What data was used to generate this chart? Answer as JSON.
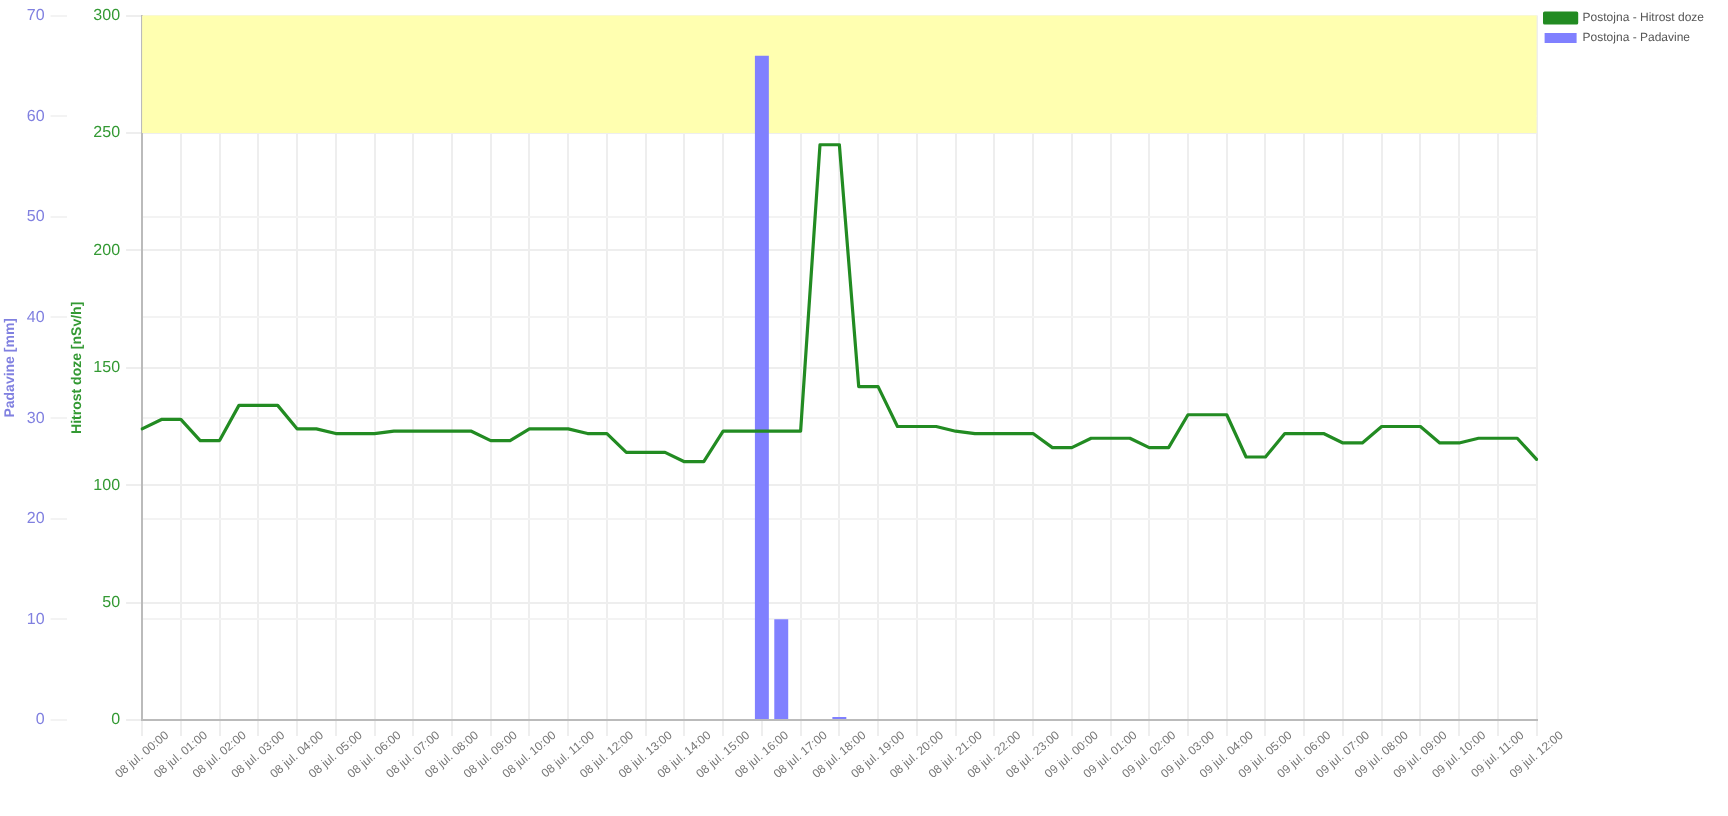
{
  "chart_data": {
    "type": "line",
    "ylabel": "Hitrost doze [nSv/h]",
    "y2label": "Padavine [mm]",
    "categories": [
      "08 jul. 00:00",
      null,
      "08 jul. 01:00",
      null,
      "08 jul. 02:00",
      null,
      "08 jul. 03:00",
      null,
      "08 jul. 04:00",
      null,
      "08 jul. 05:00",
      null,
      "08 jul. 06:00",
      null,
      "08 jul. 07:00",
      null,
      "08 jul. 08:00",
      null,
      "08 jul. 09:00",
      null,
      "08 jul. 10:00",
      null,
      "08 jul. 11:00",
      null,
      "08 jul. 12:00",
      null,
      "08 jul. 13:00",
      null,
      "08 jul. 14:00",
      null,
      "08 jul. 15:00",
      null,
      "08 jul. 16:00",
      null,
      "08 jul. 17:00",
      null,
      "08 jul. 18:00",
      null,
      "08 jul. 19:00",
      null,
      "08 jul. 20:00",
      null,
      "08 jul. 21:00",
      null,
      "08 jul. 22:00",
      null,
      "08 jul. 23:00",
      null,
      "09 jul. 00:00",
      null,
      "09 jul. 01:00",
      null,
      "09 jul. 02:00",
      null,
      "09 jul. 03:00",
      null,
      "09 jul. 04:00",
      null,
      "09 jul. 05:00",
      null,
      "09 jul. 06:00",
      null,
      "09 jul. 07:00",
      null,
      "09 jul. 08:00",
      null,
      "09 jul. 09:00",
      null,
      "09 jul. 10:00",
      null,
      "09 jul. 11:00",
      null,
      "09 jul. 12:00"
    ],
    "ylim": [
      0,
      300
    ],
    "yticks": [
      0,
      50,
      100,
      150,
      200,
      250,
      300
    ],
    "y2lim": [
      0,
      70
    ],
    "y2ticks": [
      0,
      10,
      20,
      30,
      40,
      50,
      60,
      70
    ],
    "grid": true,
    "legend": "top right",
    "marker": "none",
    "line_style": "solid",
    "bands": [
      {
        "axis": "y",
        "from": 250,
        "to": 300,
        "color": "#ffffb0"
      }
    ],
    "series": [
      {
        "name": "Postojna - Hitrost doze",
        "color": "#228b22",
        "values": [
          124,
          128,
          128,
          119,
          119,
          134,
          134,
          134,
          124,
          124,
          122,
          122,
          122,
          123,
          123,
          123,
          123,
          123,
          119,
          119,
          124,
          124,
          124,
          122,
          122,
          114,
          114,
          114,
          110,
          110,
          123,
          123,
          123,
          123,
          123,
          245,
          245,
          142,
          142,
          125,
          125,
          125,
          123,
          122,
          122,
          122,
          122,
          116,
          116,
          120,
          120,
          120,
          116,
          116,
          130,
          130,
          130,
          112,
          112,
          122,
          122,
          122,
          118,
          118,
          125,
          125,
          125,
          118,
          118,
          120,
          120,
          120,
          111
        ]
      },
      {
        "name": "Postojna - Padavine",
        "type": "bar",
        "axis": "y2",
        "color": "#8080ff",
        "values": [
          null,
          null,
          null,
          null,
          null,
          null,
          null,
          null,
          null,
          null,
          null,
          null,
          null,
          null,
          null,
          null,
          null,
          null,
          null,
          null,
          null,
          null,
          null,
          null,
          null,
          null,
          null,
          null,
          null,
          null,
          null,
          null,
          66,
          10,
          null,
          null,
          0.3,
          null,
          null,
          null,
          null,
          null,
          null,
          null,
          null,
          null,
          null,
          null,
          null,
          null,
          null,
          null,
          null,
          null,
          null,
          null,
          null,
          null,
          null,
          null,
          null,
          null,
          null,
          null,
          null,
          null,
          null,
          null,
          null,
          null,
          null,
          null,
          null
        ]
      }
    ]
  }
}
